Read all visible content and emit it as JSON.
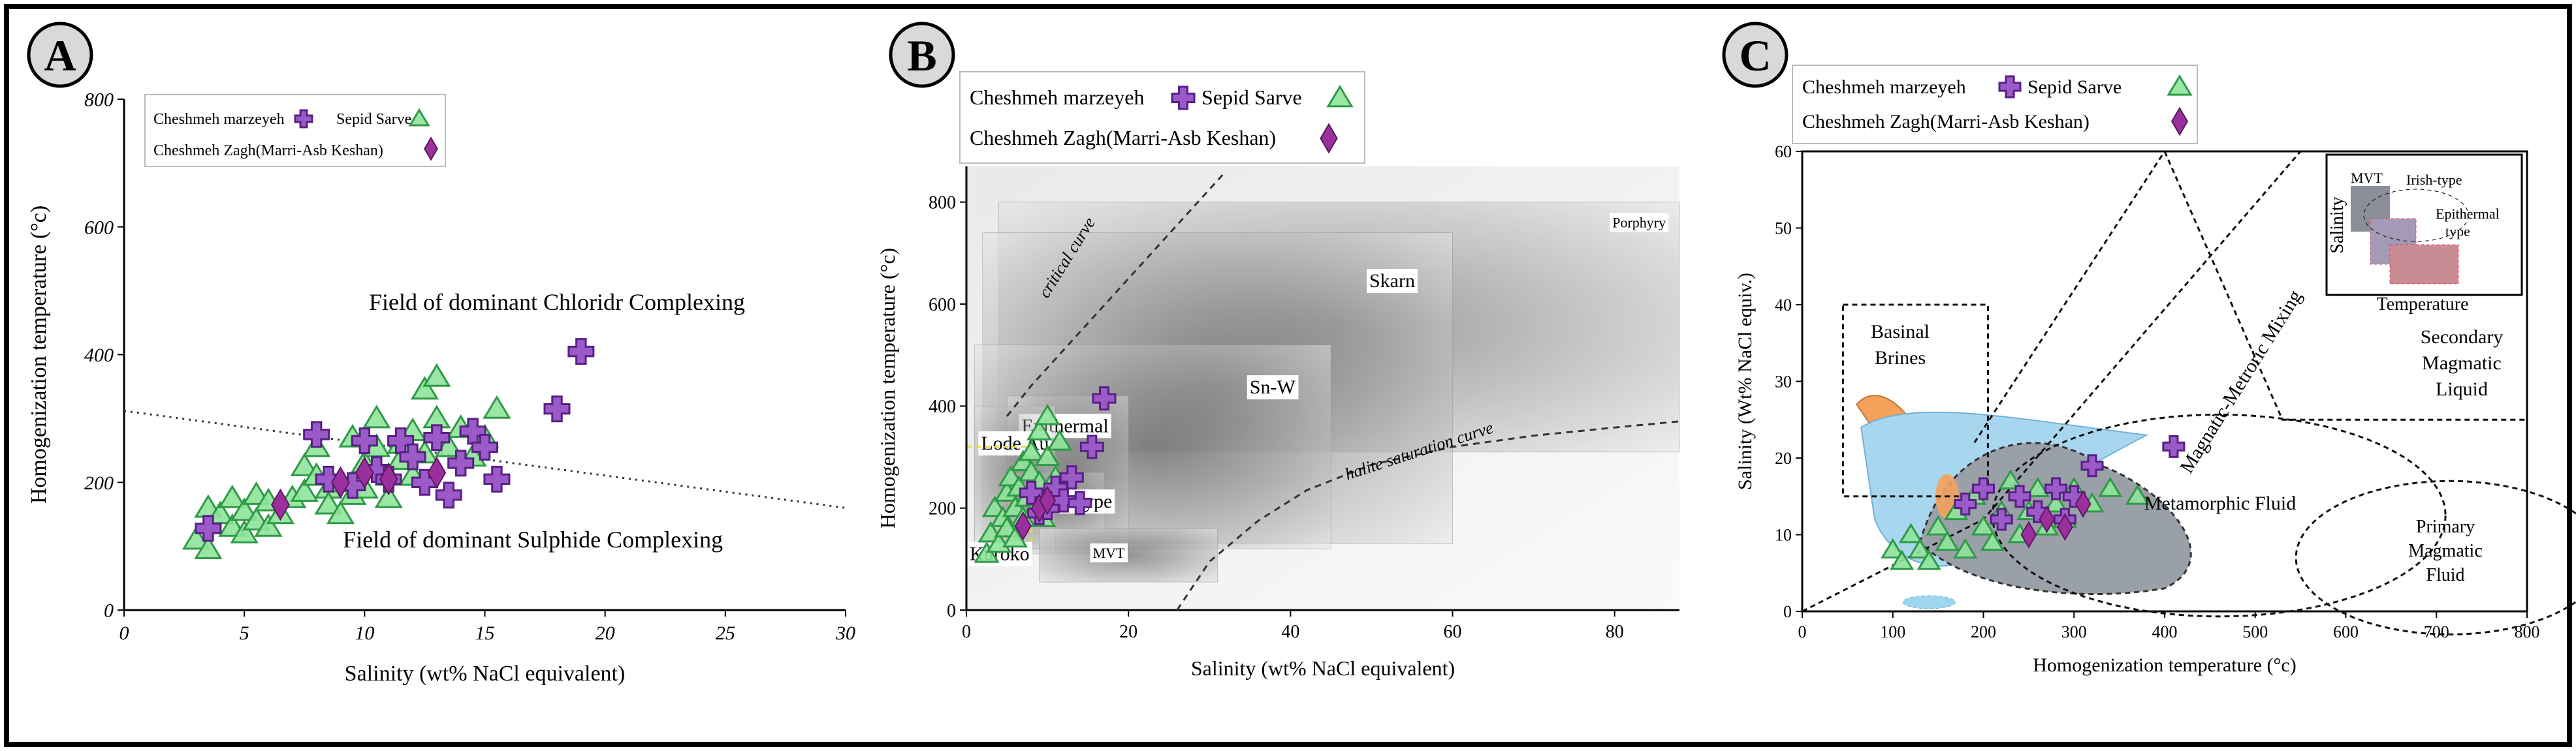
{
  "colors": {
    "triangle_fill": "#8fe39a",
    "triangle_stroke": "#2e9a46",
    "cross_fill": "#9a5bc8",
    "cross_stroke": "#5a1f86",
    "diamond_fill": "#9b2f9d",
    "badge_fill": "#d9d9d9"
  },
  "legend": {
    "series": [
      {
        "name": "Cheshmeh marzeyeh",
        "marker": "cross"
      },
      {
        "name": "Sepid Sarve",
        "marker": "triangle"
      },
      {
        "name": "Cheshmeh Zagh(Marri-Asb Keshan)",
        "marker": "diamond"
      }
    ]
  },
  "chart_data": [
    {
      "panel": "A",
      "type": "scatter",
      "title": "",
      "xlabel": "Salinity (wt% NaCl equivalent)",
      "ylabel": "Homogenization temperature (°c)",
      "xlim": [
        0,
        30
      ],
      "ylim": [
        0,
        800
      ],
      "xticks": [
        0,
        5,
        10,
        15,
        20,
        25,
        30
      ],
      "xtick_labels": [
        "0",
        "5",
        "10",
        "15",
        "20",
        "25",
        "30"
      ],
      "yticks": [
        0,
        200,
        400,
        600,
        800
      ],
      "ytick_labels": [
        "0",
        "200",
        "400",
        "600",
        "800"
      ],
      "grid": false,
      "legend_position": "top-left",
      "annotations": [
        {
          "text": "Field of dominant Chloridr Complexing",
          "x": 18,
          "y": 470
        },
        {
          "text": "Field of dominant Sulphide Complexing",
          "x": 17,
          "y": 98
        }
      ],
      "lines": [
        {
          "name": "boundary",
          "x": [
            0,
            30
          ],
          "y": [
            312,
            160
          ],
          "style": "dotted"
        }
      ],
      "series": [
        {
          "name": "Sepid Sarve",
          "marker": "triangle",
          "points": [
            [
              3,
              110
            ],
            [
              3.5,
              95
            ],
            [
              3.5,
              160
            ],
            [
              4,
              150
            ],
            [
              4.5,
              175
            ],
            [
              4.5,
              130
            ],
            [
              5,
              120
            ],
            [
              5,
              155
            ],
            [
              5.5,
              140
            ],
            [
              5.5,
              180
            ],
            [
              6,
              170
            ],
            [
              6,
              130
            ],
            [
              6.5,
              150
            ],
            [
              7,
              175
            ],
            [
              7.5,
              225
            ],
            [
              7.5,
              185
            ],
            [
              8,
              210
            ],
            [
              8,
              255
            ],
            [
              8.5,
              190
            ],
            [
              8.5,
              165
            ],
            [
              9,
              200
            ],
            [
              9,
              150
            ],
            [
              9.5,
              180
            ],
            [
              9.5,
              270
            ],
            [
              10,
              230
            ],
            [
              10,
              190
            ],
            [
              10.5,
              255
            ],
            [
              10.5,
              300
            ],
            [
              11,
              210
            ],
            [
              11,
              175
            ],
            [
              11.5,
              260
            ],
            [
              11.5,
              235
            ],
            [
              12,
              280
            ],
            [
              12,
              210
            ],
            [
              12.5,
              245
            ],
            [
              12.5,
              345
            ],
            [
              13,
              365
            ],
            [
              13,
              300
            ],
            [
              13.5,
              255
            ],
            [
              14,
              285
            ],
            [
              14.5,
              240
            ],
            [
              15,
              270
            ],
            [
              15.5,
              315
            ]
          ]
        },
        {
          "name": "Cheshmeh marzeyeh",
          "marker": "cross",
          "points": [
            [
              3.5,
              128
            ],
            [
              8,
              275
            ],
            [
              8.5,
              205
            ],
            [
              9.5,
              195
            ],
            [
              10,
              265
            ],
            [
              10.5,
              220
            ],
            [
              11,
              205
            ],
            [
              11.5,
              265
            ],
            [
              12,
              240
            ],
            [
              12.5,
              200
            ],
            [
              13,
              270
            ],
            [
              13.5,
              180
            ],
            [
              14,
              230
            ],
            [
              14.5,
              280
            ],
            [
              15,
              255
            ],
            [
              15.5,
              205
            ],
            [
              18,
              315
            ],
            [
              19,
              405
            ]
          ]
        },
        {
          "name": "Cheshmeh Zagh(Marri-Asb Keshan)",
          "marker": "diamond",
          "points": [
            [
              6.5,
              165
            ],
            [
              9,
              200
            ],
            [
              10,
              215
            ],
            [
              11,
              205
            ],
            [
              13,
              215
            ]
          ]
        }
      ]
    },
    {
      "panel": "B",
      "type": "scatter",
      "title": "",
      "xlabel": "Salinity (wt% NaCl equivalent)",
      "ylabel": "Homogenization temperature (°c)",
      "xlim": [
        0,
        88
      ],
      "ylim": [
        0,
        870
      ],
      "xticks": [
        0,
        20,
        40,
        60,
        80
      ],
      "xtick_labels": [
        "0",
        "20",
        "40",
        "60",
        "80"
      ],
      "yticks": [
        0,
        200,
        400,
        600,
        800
      ],
      "ytick_labels": [
        "0",
        "200",
        "400",
        "600",
        "800"
      ],
      "grid": false,
      "legend_position": "top-left",
      "fields": [
        {
          "label": "Porphyry",
          "x": [
            4,
            88
          ],
          "y": [
            310,
            800
          ]
        },
        {
          "label": "Skarn",
          "x": [
            2,
            60
          ],
          "y": [
            130,
            740
          ]
        },
        {
          "label": "Sn-W",
          "x": [
            1,
            45
          ],
          "y": [
            120,
            520
          ]
        },
        {
          "label": "Epithermal",
          "x": [
            5,
            20
          ],
          "y": [
            110,
            420
          ]
        },
        {
          "label": "Lode Au",
          "x": [
            1,
            11
          ],
          "y": [
            120,
            400
          ]
        },
        {
          "label": "Irish-type",
          "x": [
            5,
            17
          ],
          "y": [
            150,
            270
          ]
        },
        {
          "label": "MVT",
          "x": [
            9,
            31
          ],
          "y": [
            55,
            160
          ]
        },
        {
          "label": "Kuroko",
          "x": [
            0,
            8
          ],
          "y": [
            90,
            320
          ]
        }
      ],
      "curves": [
        {
          "label": "critical curve",
          "x": [
            5,
            8,
            12,
            16,
            20,
            24,
            28,
            32
          ],
          "y": [
            380,
            440,
            510,
            580,
            650,
            720,
            790,
            860
          ]
        },
        {
          "label": "halite saturation curve",
          "x": [
            26,
            30,
            36,
            42,
            50,
            60,
            70,
            80,
            88
          ],
          "y": [
            0,
            95,
            175,
            235,
            285,
            320,
            342,
            358,
            370
          ]
        }
      ],
      "series": [
        {
          "name": "Sepid Sarve",
          "marker": "triangle",
          "points": [
            [
              2.5,
              110
            ],
            [
              3,
              150
            ],
            [
              3.5,
              200
            ],
            [
              4,
              130
            ],
            [
              4.5,
              180
            ],
            [
              5,
              230
            ],
            [
              5,
              160
            ],
            [
              5.5,
              260
            ],
            [
              6,
              200
            ],
            [
              6,
              140
            ],
            [
              6.5,
              240
            ],
            [
              7,
              290
            ],
            [
              7,
              180
            ],
            [
              7.5,
              220
            ],
            [
              8,
              270
            ],
            [
              8,
              310
            ],
            [
              8.5,
              200
            ],
            [
              9,
              250
            ],
            [
              9,
              350
            ],
            [
              9.5,
              180
            ],
            [
              10,
              300
            ],
            [
              10,
              380
            ],
            [
              10.5,
              220
            ],
            [
              11,
              260
            ],
            [
              11.5,
              330
            ]
          ]
        },
        {
          "name": "Cheshmeh marzeyeh",
          "marker": "cross",
          "points": [
            [
              8,
              230
            ],
            [
              9,
              190
            ],
            [
              10,
              200
            ],
            [
              11,
              240
            ],
            [
              12,
              215
            ],
            [
              13,
              260
            ],
            [
              14,
              210
            ],
            [
              15.5,
              320
            ],
            [
              17,
              415
            ]
          ]
        },
        {
          "name": "Cheshmeh Zagh(Marri-Asb Keshan)",
          "marker": "diamond",
          "points": [
            [
              7,
              165
            ],
            [
              9,
              200
            ],
            [
              10,
              215
            ]
          ]
        }
      ]
    },
    {
      "panel": "C",
      "type": "scatter",
      "title": "",
      "xlabel": "Homogenization temperature (°c)",
      "ylabel": "Salinity (Wt% NaCl equiv.)",
      "xlim": [
        0,
        800
      ],
      "ylim": [
        0,
        60
      ],
      "xticks": [
        0,
        100,
        200,
        300,
        400,
        500,
        600,
        700,
        800
      ],
      "xtick_labels": [
        "0",
        "100",
        "200",
        "300",
        "400",
        "500",
        "600",
        "700",
        "800"
      ],
      "yticks": [
        0,
        10,
        20,
        30,
        40,
        50,
        60
      ],
      "ytick_labels": [
        "0",
        "10",
        "20",
        "30",
        "40",
        "50",
        "60"
      ],
      "grid": false,
      "legend_position": "top-left",
      "regions": [
        {
          "label": "Basinal Brines"
        },
        {
          "label": "Magnatic-Metroric Mixing"
        },
        {
          "label": "Secondary Magmatic Liquid"
        },
        {
          "label": "Metamorphic Fluid"
        },
        {
          "label": "Primary Magmatic Fluid"
        }
      ],
      "inset": {
        "xlabel": "Temperature",
        "ylabel": "Salinity",
        "labels": [
          "MVT",
          "Irish-type",
          "Epithermal type"
        ]
      },
      "series": [
        {
          "name": "Sepid Sarve",
          "marker": "triangle",
          "points": [
            [
              100,
              8
            ],
            [
              110,
              6.5
            ],
            [
              120,
              10
            ],
            [
              130,
              8
            ],
            [
              140,
              6.5
            ],
            [
              150,
              11
            ],
            [
              160,
              9
            ],
            [
              170,
              13
            ],
            [
              180,
              8
            ],
            [
              190,
              15
            ],
            [
              200,
              11
            ],
            [
              210,
              9
            ],
            [
              220,
              13
            ],
            [
              230,
              17
            ],
            [
              240,
              10
            ],
            [
              250,
              13
            ],
            [
              260,
              16
            ],
            [
              270,
              11
            ],
            [
              280,
              14
            ],
            [
              290,
              12
            ],
            [
              300,
              16
            ],
            [
              320,
              14
            ],
            [
              340,
              16
            ],
            [
              370,
              15
            ]
          ]
        },
        {
          "name": "Cheshmeh marzeyeh",
          "marker": "cross",
          "points": [
            [
              180,
              14
            ],
            [
              200,
              16
            ],
            [
              220,
              12
            ],
            [
              240,
              15
            ],
            [
              260,
              13
            ],
            [
              280,
              16
            ],
            [
              290,
              12
            ],
            [
              300,
              15
            ],
            [
              320,
              19
            ],
            [
              410,
              21.5
            ]
          ]
        },
        {
          "name": "Cheshmeh Zagh(Marri-Asb Keshan)",
          "marker": "diamond",
          "points": [
            [
              250,
              10
            ],
            [
              270,
              12
            ],
            [
              290,
              11
            ],
            [
              310,
              14
            ]
          ]
        }
      ]
    }
  ],
  "panel_labels": [
    "A",
    "B",
    "C"
  ],
  "text": {
    "A": {
      "ann1": "Field of dominant Chloridr Complexing",
      "ann2": "Field of dominant Sulphide Complexing"
    },
    "B": {
      "crit": "critical curve",
      "halite": "halite saturation curve"
    },
    "C": {
      "basinal1": "Basinal",
      "basinal2": "Brines",
      "mixing": "Magnatic-Metroric Mixing",
      "sec1": "Secondary",
      "sec2": "Magmatic",
      "sec3": "Liquid",
      "meta": "Metamorphic Fluid",
      "prim1": "Primary",
      "prim2": "Magmatic",
      "prim3": "Fluid",
      "inset_mvt": "MVT",
      "inset_irish": "Irish-type",
      "inset_epi1": "Epithermal",
      "inset_epi2": "type",
      "inset_temp": "Temperature",
      "inset_sal": "Salinity"
    }
  }
}
